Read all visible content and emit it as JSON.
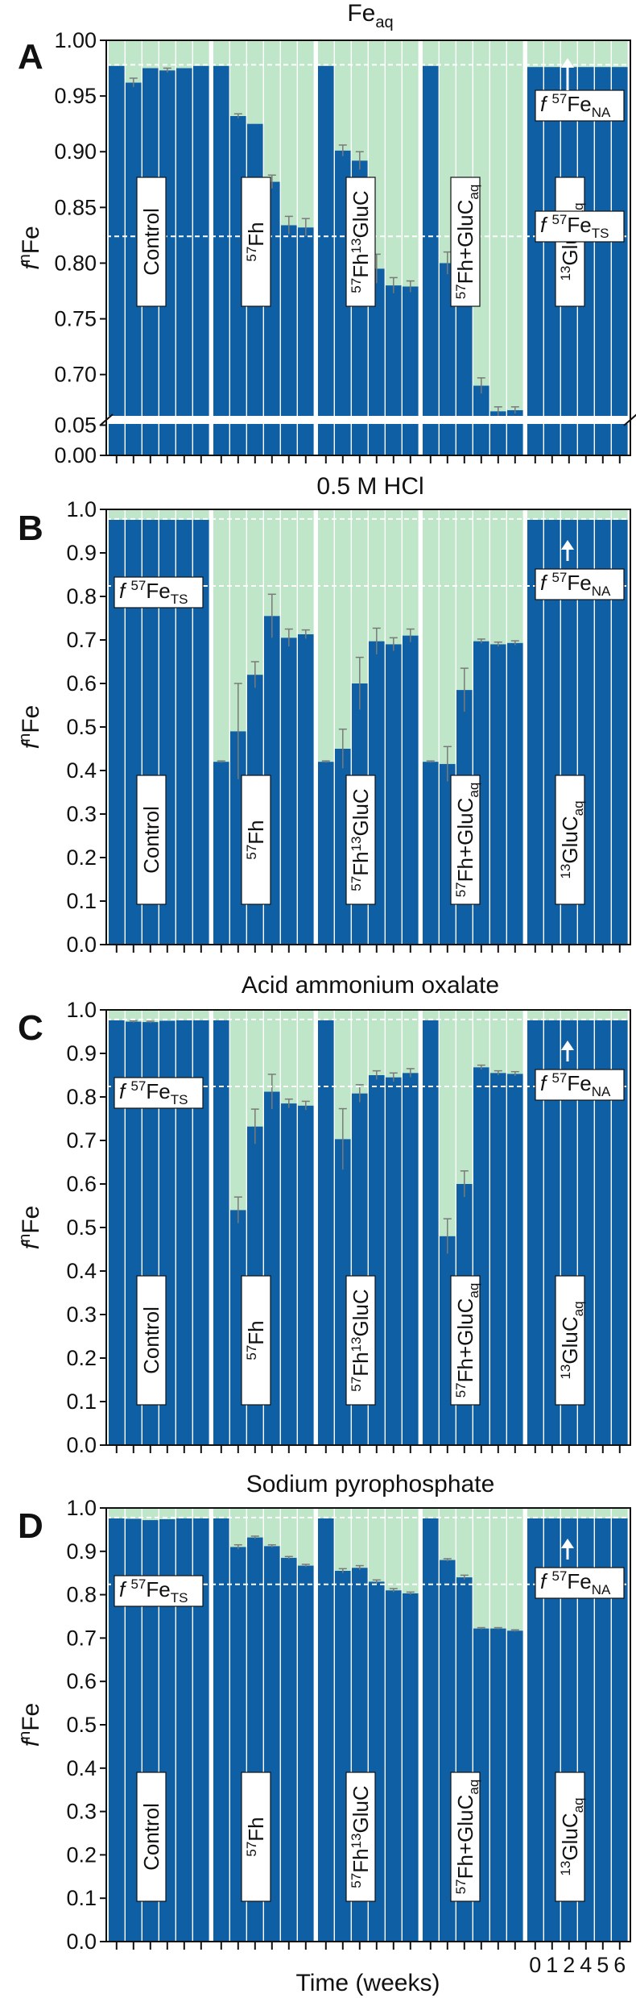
{
  "figure": {
    "xlabel": "Time (weeks)",
    "week_ticks": [
      "0",
      "1",
      "2",
      "4",
      "5",
      "6"
    ]
  },
  "chart_data": [
    {
      "type": "bar",
      "stacked": true,
      "letter": "A",
      "title": "Fe",
      "title_sub": "aq",
      "ylabel": "f",
      "ylabel_sup": "n",
      "ylabel_tail": "Fe",
      "ylim": [
        0.0,
        1.0
      ],
      "axis_break": [
        0.06,
        0.66
      ],
      "y_ticks": [
        "1.00",
        "0.95",
        "0.90",
        "0.85",
        "0.80",
        "0.75",
        "0.70",
        "0.05",
        "0.00"
      ],
      "x": [
        0,
        1,
        2,
        4,
        5,
        6
      ],
      "annotations": {
        "na": {
          "label": "f ",
          "sup": "57",
          "main": "Fe",
          "sub": "NA",
          "value": 0.978
        },
        "ts": {
          "label": "f ",
          "sup": "57",
          "main": "Fe",
          "sub": "TS",
          "value": 0.824
        }
      },
      "groups": [
        {
          "label": "Control",
          "values": [
            0.977,
            0.962,
            0.975,
            0.973,
            0.975,
            0.977
          ],
          "errors": [
            0.001,
            0.004,
            0.001,
            0.002,
            0.001,
            0.001
          ]
        },
        {
          "label": "",
          "label_sup": "57",
          "label_main": "Fh",
          "label_sub": "",
          "values": [
            0.977,
            0.932,
            0.925,
            0.873,
            0.834,
            0.832
          ],
          "errors": [
            0.001,
            0.002,
            0.001,
            0.006,
            0.008,
            0.008
          ]
        },
        {
          "label": "",
          "label_sup": "57",
          "label_main": "Fh",
          "label_sup2": "13",
          "label_tail": "GluC",
          "values": [
            0.977,
            0.901,
            0.892,
            0.795,
            0.78,
            0.779
          ],
          "errors": [
            0.001,
            0.005,
            0.008,
            0.013,
            0.007,
            0.005
          ]
        },
        {
          "label": "",
          "label_sup": "57",
          "label_main": "Fh+GluC",
          "label_sub": "aq",
          "values": [
            0.977,
            0.8,
            0.805,
            0.69,
            0.667,
            0.668
          ],
          "errors": [
            0.001,
            0.01,
            0.006,
            0.007,
            0.004,
            0.003
          ]
        },
        {
          "label": "",
          "label_sup": "13",
          "label_main": "GluC",
          "label_sub": "aq",
          "values": [
            0.976,
            0.976,
            0.976,
            0.976,
            0.976,
            0.976
          ],
          "errors": [
            0.001,
            0.001,
            0.001,
            0.001,
            0.001,
            0.001
          ]
        }
      ]
    },
    {
      "type": "bar",
      "stacked": true,
      "letter": "B",
      "title": "0.5 M HCl",
      "ylabel": "f",
      "ylabel_sup": "n",
      "ylabel_tail": "Fe",
      "ylim": [
        0.0,
        1.0
      ],
      "y_ticks": [
        "1.0",
        "0.9",
        "0.8",
        "0.7",
        "0.6",
        "0.5",
        "0.4",
        "0.3",
        "0.2",
        "0.1",
        "0.0"
      ],
      "x": [
        0,
        1,
        2,
        4,
        5,
        6
      ],
      "annotations": {
        "na": {
          "label": "f ",
          "sup": "57",
          "main": "Fe",
          "sub": "NA",
          "value": 0.978
        },
        "ts": {
          "label": "f ",
          "sup": "57",
          "main": "Fe",
          "sub": "TS",
          "value": 0.824
        }
      },
      "groups": [
        {
          "label": "Control",
          "values": [
            0.976,
            0.976,
            0.976,
            0.976,
            0.976,
            0.976
          ],
          "errors": [
            0.001,
            0.001,
            0.001,
            0.001,
            0.001,
            0.001
          ]
        },
        {
          "label": "",
          "label_sup": "57",
          "label_main": "Fh",
          "label_sub": "",
          "values": [
            0.42,
            0.49,
            0.62,
            0.755,
            0.705,
            0.713
          ],
          "errors": [
            0.002,
            0.11,
            0.03,
            0.05,
            0.02,
            0.01
          ]
        },
        {
          "label": "",
          "label_sup": "57",
          "label_main": "Fh",
          "label_sup2": "13",
          "label_tail": "GluC",
          "values": [
            0.42,
            0.45,
            0.6,
            0.697,
            0.69,
            0.71
          ],
          "errors": [
            0.002,
            0.045,
            0.06,
            0.03,
            0.015,
            0.015
          ]
        },
        {
          "label": "",
          "label_sup": "57",
          "label_main": "Fh+GluC",
          "label_sub": "aq",
          "values": [
            0.42,
            0.415,
            0.585,
            0.697,
            0.69,
            0.693
          ],
          "errors": [
            0.002,
            0.04,
            0.05,
            0.005,
            0.005,
            0.005
          ]
        },
        {
          "label": "",
          "label_sup": "13",
          "label_main": "GluC",
          "label_sub": "aq",
          "values": [
            0.976,
            0.976,
            0.976,
            0.976,
            0.976,
            0.976
          ],
          "errors": [
            0.001,
            0.001,
            0.001,
            0.001,
            0.001,
            0.001
          ]
        }
      ]
    },
    {
      "type": "bar",
      "stacked": true,
      "letter": "C",
      "title": "Acid ammonium oxalate",
      "ylabel": "f",
      "ylabel_sup": "n",
      "ylabel_tail": "Fe",
      "ylim": [
        0.0,
        1.0
      ],
      "y_ticks": [
        "1.0",
        "0.9",
        "0.8",
        "0.7",
        "0.6",
        "0.5",
        "0.4",
        "0.3",
        "0.2",
        "0.1",
        "0.0"
      ],
      "x": [
        0,
        1,
        2,
        4,
        5,
        6
      ],
      "annotations": {
        "na": {
          "label": "f ",
          "sup": "57",
          "main": "Fe",
          "sub": "NA",
          "value": 0.978
        },
        "ts": {
          "label": "f ",
          "sup": "57",
          "main": "Fe",
          "sub": "TS",
          "value": 0.824
        }
      },
      "groups": [
        {
          "label": "Control",
          "values": [
            0.976,
            0.973,
            0.972,
            0.975,
            0.976,
            0.976
          ],
          "errors": [
            0.001,
            0.002,
            0.002,
            0.001,
            0.001,
            0.001
          ]
        },
        {
          "label": "",
          "label_sup": "57",
          "label_main": "Fh",
          "label_sub": "",
          "values": [
            0.976,
            0.54,
            0.732,
            0.812,
            0.785,
            0.78
          ],
          "errors": [
            0.001,
            0.03,
            0.04,
            0.04,
            0.01,
            0.01
          ]
        },
        {
          "label": "",
          "label_sup": "57",
          "label_main": "Fh",
          "label_sup2": "13",
          "label_tail": "GluC",
          "values": [
            0.976,
            0.703,
            0.808,
            0.85,
            0.845,
            0.855
          ],
          "errors": [
            0.001,
            0.07,
            0.02,
            0.01,
            0.01,
            0.01
          ]
        },
        {
          "label": "",
          "label_sup": "57",
          "label_main": "Fh+GluC",
          "label_sub": "aq",
          "values": [
            0.976,
            0.48,
            0.6,
            0.868,
            0.855,
            0.853
          ],
          "errors": [
            0.001,
            0.04,
            0.03,
            0.005,
            0.005,
            0.005
          ]
        },
        {
          "label": "",
          "label_sup": "13",
          "label_main": "GluC",
          "label_sub": "aq",
          "values": [
            0.976,
            0.976,
            0.976,
            0.976,
            0.976,
            0.976
          ],
          "errors": [
            0.001,
            0.001,
            0.001,
            0.001,
            0.001,
            0.001
          ]
        }
      ]
    },
    {
      "type": "bar",
      "stacked": true,
      "letter": "D",
      "title": "Sodium pyrophosphate",
      "ylabel": "f",
      "ylabel_sup": "n",
      "ylabel_tail": "Fe",
      "ylim": [
        0.0,
        1.0
      ],
      "y_ticks": [
        "1.0",
        "0.9",
        "0.8",
        "0.7",
        "0.6",
        "0.5",
        "0.4",
        "0.3",
        "0.2",
        "0.1",
        "0.0"
      ],
      "x": [
        0,
        1,
        2,
        4,
        5,
        6
      ],
      "annotations": {
        "na": {
          "label": "f ",
          "sup": "57",
          "main": "Fe",
          "sub": "NA",
          "value": 0.978
        },
        "ts": {
          "label": "f ",
          "sup": "57",
          "main": "Fe",
          "sub": "TS",
          "value": 0.824
        }
      },
      "groups": [
        {
          "label": "Control",
          "values": [
            0.976,
            0.975,
            0.972,
            0.974,
            0.976,
            0.976
          ],
          "errors": [
            0.001,
            0.001,
            0.001,
            0.001,
            0.001,
            0.001
          ]
        },
        {
          "label": "",
          "label_sup": "57",
          "label_main": "Fh",
          "label_sub": "",
          "values": [
            0.976,
            0.91,
            0.932,
            0.912,
            0.885,
            0.867
          ],
          "errors": [
            0.001,
            0.005,
            0.003,
            0.003,
            0.003,
            0.003
          ]
        },
        {
          "label": "",
          "label_sup": "57",
          "label_main": "Fh",
          "label_sup2": "13",
          "label_tail": "GluC",
          "values": [
            0.976,
            0.855,
            0.862,
            0.83,
            0.81,
            0.803
          ],
          "errors": [
            0.001,
            0.005,
            0.005,
            0.004,
            0.004,
            0.003
          ]
        },
        {
          "label": "",
          "label_sup": "57",
          "label_main": "Fh+GluC",
          "label_sub": "aq",
          "values": [
            0.976,
            0.88,
            0.84,
            0.722,
            0.722,
            0.717
          ],
          "errors": [
            0.001,
            0.003,
            0.005,
            0.002,
            0.002,
            0.002
          ]
        },
        {
          "label": "",
          "label_sup": "13",
          "label_main": "GluC",
          "label_sub": "aq",
          "values": [
            0.976,
            0.976,
            0.976,
            0.976,
            0.976,
            0.976
          ],
          "errors": [
            0.001,
            0.001,
            0.001,
            0.001,
            0.001,
            0.001
          ]
        }
      ]
    }
  ],
  "colors": {
    "blue": "#0e5fa4",
    "green": "#bfe6c8",
    "error": "#7a7a7a",
    "frame": "#111111",
    "dashed": "#ffffff"
  }
}
